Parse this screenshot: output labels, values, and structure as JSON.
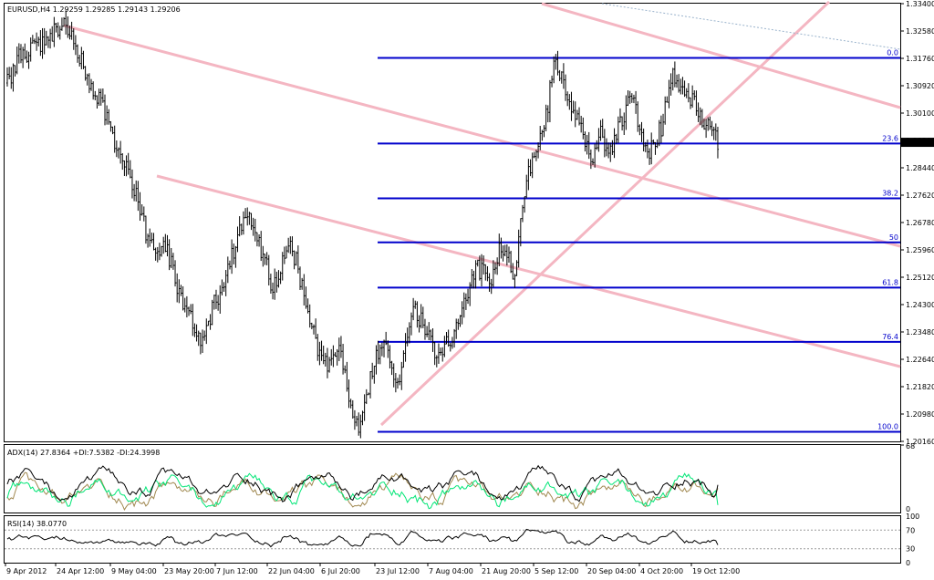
{
  "window": {
    "header": "EURUSD,H4  1.29259 1.29285 1.29143 1.29206"
  },
  "colors": {
    "price": "#000000",
    "fibonacci": "#0000cc",
    "trendline": "#f4b6c2",
    "guide": "#9ab3cc",
    "adx": "#000000",
    "plus_di": "#00e676",
    "minus_di": "#a08850",
    "rsi": "#000000",
    "current_price_bg": "#000000",
    "current_price_fg": "#ffffff"
  },
  "chart_data": [
    {
      "type": "candlestick",
      "name": "EURUSD H4 price",
      "ylim": [
        1.2016,
        1.334
      ],
      "y_ticks": [
        "1.33400",
        "1.32580",
        "1.31760",
        "1.30920",
        "1.30100",
        "1.29206",
        "1.28440",
        "1.27620",
        "1.26780",
        "1.25960",
        "1.25120",
        "1.24300",
        "1.23480",
        "1.22640",
        "1.21820",
        "1.20980",
        "1.20160"
      ],
      "current_price": "1.29206",
      "x_ticks": [
        "9 Apr 2012",
        "24 Apr 12:00",
        "9 May 04:00",
        "23 May 20:00",
        "7 Jun 12:00",
        "22 Jun 04:00",
        "6 Jul 20:00",
        "23 Jul 12:00",
        "7 Aug 04:00",
        "21 Aug 20:00",
        "5 Sep 12:00",
        "20 Sep 04:00",
        "4 Oct 20:00",
        "19 Oct 12:00"
      ],
      "price_path": [
        [
          0,
          1.31
        ],
        [
          6,
          1.318
        ],
        [
          12,
          1.32
        ],
        [
          18,
          1.322
        ],
        [
          24,
          1.325
        ],
        [
          30,
          1.328
        ],
        [
          36,
          1.32
        ],
        [
          40,
          1.312
        ],
        [
          45,
          1.308
        ],
        [
          50,
          1.3
        ],
        [
          55,
          1.292
        ],
        [
          60,
          1.285
        ],
        [
          64,
          1.279
        ],
        [
          68,
          1.272
        ],
        [
          72,
          1.262
        ],
        [
          76,
          1.258
        ],
        [
          80,
          1.263
        ],
        [
          84,
          1.255
        ],
        [
          88,
          1.247
        ],
        [
          92,
          1.241
        ],
        [
          96,
          1.236
        ],
        [
          100,
          1.232
        ],
        [
          104,
          1.24
        ],
        [
          108,
          1.246
        ],
        [
          112,
          1.252
        ],
        [
          116,
          1.26
        ],
        [
          120,
          1.266
        ],
        [
          124,
          1.272
        ],
        [
          128,
          1.262
        ],
        [
          132,
          1.256
        ],
        [
          136,
          1.248
        ],
        [
          140,
          1.255
        ],
        [
          144,
          1.262
        ],
        [
          148,
          1.256
        ],
        [
          152,
          1.245
        ],
        [
          156,
          1.236
        ],
        [
          160,
          1.228
        ],
        [
          164,
          1.224
        ],
        [
          168,
          1.23
        ],
        [
          172,
          1.226
        ],
        [
          176,
          1.21
        ],
        [
          180,
          1.204
        ],
        [
          184,
          1.215
        ],
        [
          188,
          1.226
        ],
        [
          192,
          1.233
        ],
        [
          196,
          1.226
        ],
        [
          200,
          1.218
        ],
        [
          204,
          1.232
        ],
        [
          208,
          1.242
        ],
        [
          212,
          1.238
        ],
        [
          216,
          1.232
        ],
        [
          220,
          1.226
        ],
        [
          224,
          1.23
        ],
        [
          228,
          1.232
        ],
        [
          232,
          1.238
        ],
        [
          236,
          1.246
        ],
        [
          240,
          1.255
        ],
        [
          244,
          1.252
        ],
        [
          248,
          1.25
        ],
        [
          252,
          1.26
        ],
        [
          256,
          1.258
        ],
        [
          260,
          1.252
        ],
        [
          264,
          1.272
        ],
        [
          268,
          1.285
        ],
        [
          272,
          1.289
        ],
        [
          276,
          1.3
        ],
        [
          280,
          1.316
        ],
        [
          284,
          1.312
        ],
        [
          288,
          1.304
        ],
        [
          292,
          1.298
        ],
        [
          296,
          1.292
        ],
        [
          300,
          1.288
        ],
        [
          304,
          1.295
        ],
        [
          308,
          1.286
        ],
        [
          312,
          1.294
        ],
        [
          316,
          1.3
        ],
        [
          320,
          1.306
        ],
        [
          324,
          1.296
        ],
        [
          328,
          1.288
        ],
        [
          332,
          1.293
        ],
        [
          336,
          1.298
        ],
        [
          340,
          1.312
        ],
        [
          344,
          1.31
        ],
        [
          348,
          1.306
        ],
        [
          352,
          1.303
        ],
        [
          356,
          1.298
        ],
        [
          360,
          1.296
        ],
        [
          364,
          1.292
        ]
      ],
      "fibonacci_levels": [
        {
          "label": "0.0",
          "price": 1.3176
        },
        {
          "label": "23.6",
          "price": 1.2917
        },
        {
          "label": "38.2",
          "price": 1.2751
        },
        {
          "label": "50",
          "price": 1.2618
        },
        {
          "label": "61.8",
          "price": 1.2481
        },
        {
          "label": "76.4",
          "price": 1.2317
        },
        {
          "label": "100.0",
          "price": 1.2045
        }
      ],
      "grid": false
    },
    {
      "type": "line",
      "label": "ADX(14) 27.8364 +DI:7.5382 -DI:24.3998",
      "ylim": [
        0,
        68
      ],
      "y_ticks": [
        "68",
        "0"
      ],
      "series": [
        {
          "key": "adx",
          "value": 27.8364
        },
        {
          "key": "plus_di",
          "value": 7.5382
        },
        {
          "key": "minus_di",
          "value": 24.3998
        }
      ]
    },
    {
      "type": "line",
      "label": "RSI(14) 38.0770",
      "ylim": [
        0,
        100
      ],
      "y_ticks": [
        "100",
        "70",
        "30",
        "0"
      ],
      "levels": [
        70,
        30
      ],
      "value": 38.077
    }
  ]
}
